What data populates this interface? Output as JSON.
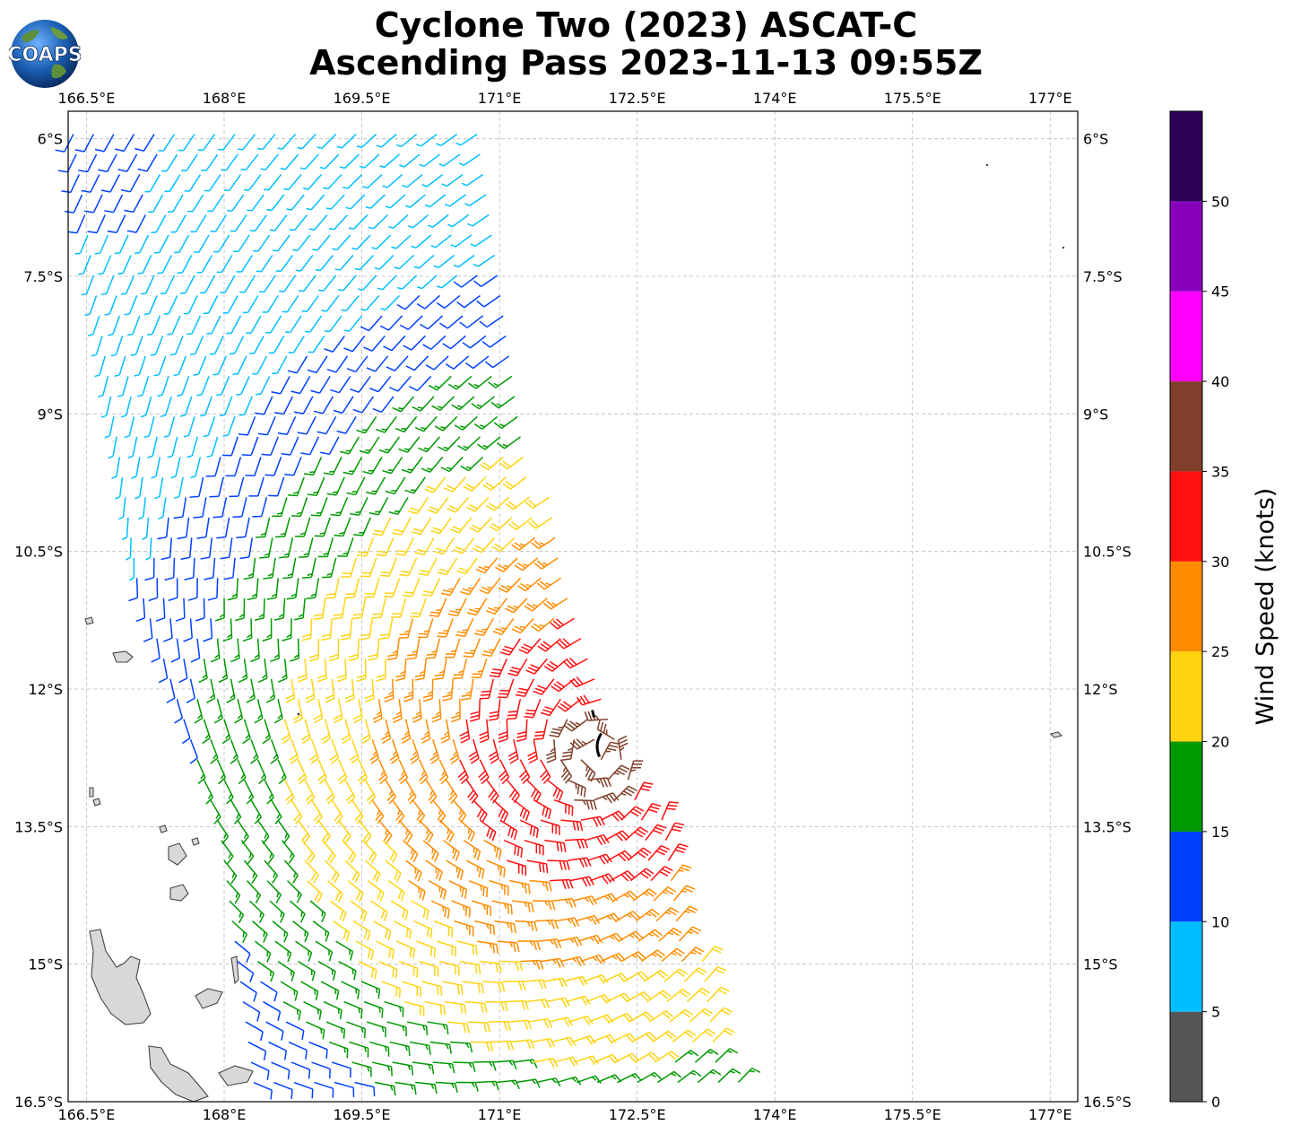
{
  "header": {
    "title_line1": "Cyclone Two (2023) ASCAT-C",
    "title_line2": "Ascending Pass 2023-11-13 09:55Z",
    "logo_text": "COAPS"
  },
  "map": {
    "lon_range": [
      166.3,
      177.3
    ],
    "lat_range": [
      -16.5,
      -5.7
    ],
    "lon_ticks": [
      "166.5°E",
      "168°E",
      "169.5°E",
      "171°E",
      "172.5°E",
      "174°E",
      "175.5°E",
      "177°E"
    ],
    "lat_ticks": [
      "6°S",
      "7.5°S",
      "9°S",
      "10.5°S",
      "12°S",
      "13.5°S",
      "15°S",
      "16.5°S"
    ],
    "grid": true,
    "land_color": "#d8d8d8",
    "coast_color": "#444444"
  },
  "colorbar": {
    "label": "Wind Speed (knots)",
    "tick_labels": [
      "0",
      "5",
      "10",
      "15",
      "20",
      "25",
      "30",
      "35",
      "40",
      "45",
      "50"
    ],
    "bins": [
      {
        "from": 0,
        "to": 5,
        "color": "#555555"
      },
      {
        "from": 5,
        "to": 10,
        "color": "#00bfff"
      },
      {
        "from": 10,
        "to": 15,
        "color": "#0040ff"
      },
      {
        "from": 15,
        "to": 20,
        "color": "#009900"
      },
      {
        "from": 20,
        "to": 25,
        "color": "#ffd310"
      },
      {
        "from": 25,
        "to": 30,
        "color": "#ff8c00"
      },
      {
        "from": 30,
        "to": 35,
        "color": "#ff0f0f"
      },
      {
        "from": 35,
        "to": 40,
        "color": "#7f3f2a"
      },
      {
        "from": 40,
        "to": 45,
        "color": "#ff00ff"
      },
      {
        "from": 45,
        "to": 50,
        "color": "#8800bb"
      },
      {
        "from": 50,
        "to": 55,
        "color": "#2b0055"
      }
    ]
  },
  "swath": {
    "description_free": true,
    "west_edge": [
      [
        166.3,
        -5.9
      ],
      [
        167.0,
        -10.8
      ],
      [
        167.9,
        -13.5
      ],
      [
        168.3,
        -16.5
      ]
    ],
    "east_edge": [
      [
        170.8,
        -6.0
      ],
      [
        171.3,
        -9.0
      ],
      [
        172.0,
        -11.5
      ],
      [
        172.8,
        -13.5
      ],
      [
        173.7,
        -16.5
      ]
    ],
    "center": [
      172.05,
      -12.7
    ]
  }
}
